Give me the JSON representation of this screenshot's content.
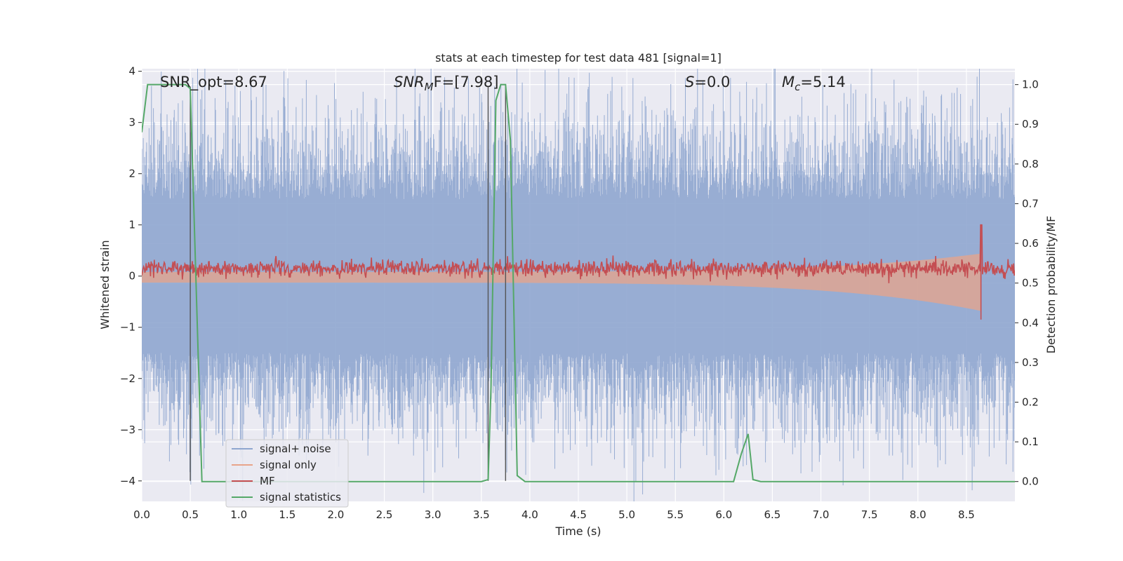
{
  "chart_data": {
    "type": "line",
    "title": "stats at each timestep for test data 481 [signal=1]",
    "xlabel": "Time (s)",
    "ylabel": "Whitened strain",
    "ylabel_right": "Detection probability/MF",
    "xlim": [
      0.0,
      9.0
    ],
    "ylim": [
      -4.4,
      4.05
    ],
    "ylim_right": [
      -0.05,
      1.04
    ],
    "x_ticks": [
      "0.0",
      "0.5",
      "1.0",
      "1.5",
      "2.0",
      "2.5",
      "3.0",
      "3.5",
      "4.0",
      "4.5",
      "5.0",
      "5.5",
      "6.0",
      "6.5",
      "7.0",
      "7.5",
      "8.0",
      "8.5"
    ],
    "y_ticks": [
      "−4",
      "−3",
      "−2",
      "−1",
      "0",
      "1",
      "2",
      "3",
      "4"
    ],
    "y_ticks_right": [
      "0.0",
      "0.1",
      "0.2",
      "0.3",
      "0.4",
      "0.5",
      "0.6",
      "0.7",
      "0.8",
      "0.9",
      "1.0"
    ],
    "grid": true,
    "legend_position": "lower-left",
    "annotations": {
      "snr_opt": "SNR_opt=8.67",
      "snr_mf_prefix": "SNR",
      "snr_mf_sub": "M",
      "snr_mf_suffix": "F=[7.98]",
      "s_label": "S",
      "s_value": "=0.0",
      "mc_label": "M",
      "mc_sub": "c",
      "mc_value": "=5.14"
    },
    "vlines_x": [
      0.5,
      3.57,
      3.75
    ],
    "series": [
      {
        "name": "signal+ noise",
        "color": "#8fa6cf",
        "axis": "left",
        "description_values": {
          "x_range": [
            0.0,
            9.0
          ],
          "amplitude_typical": 2.0,
          "amplitude_peak": 3.9
        }
      },
      {
        "name": "signal only",
        "color": "#e8a48a",
        "axis": "left",
        "description_values": {
          "x_range": [
            0.0,
            8.65
          ],
          "amplitude_start": 0.15,
          "amplitude_end": 0.8
        }
      },
      {
        "name": "MF",
        "color": "#c44e52",
        "axis": "left",
        "description_values": {
          "x_range": [
            0.0,
            9.0
          ],
          "baseline": 0.15,
          "peak_x": 8.65,
          "peak_y": 1.0
        }
      },
      {
        "name": "signal statistics",
        "color": "#55a868",
        "axis": "right",
        "x": [
          0.0,
          0.06,
          0.45,
          0.5,
          0.62,
          3.5,
          3.57,
          3.6,
          3.65,
          3.7,
          3.75,
          3.8,
          3.87,
          3.95,
          6.1,
          6.18,
          6.25,
          6.3,
          6.38,
          9.0
        ],
        "values": [
          0.88,
          1.0,
          1.0,
          0.99,
          0.0,
          0.0,
          0.005,
          0.24,
          0.96,
          1.0,
          1.0,
          0.86,
          0.015,
          0.0,
          0.0,
          0.07,
          0.12,
          0.005,
          0.0,
          0.0
        ]
      }
    ]
  }
}
